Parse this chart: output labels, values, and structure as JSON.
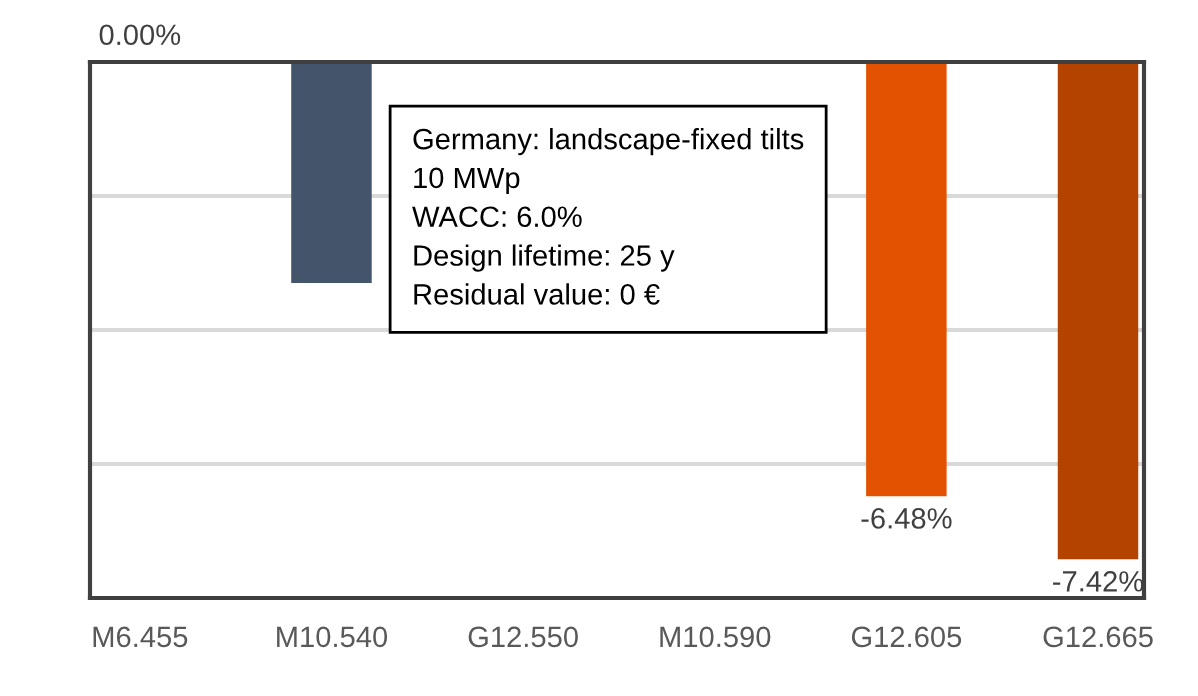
{
  "chart_data": {
    "type": "bar",
    "categories": [
      "M6.455",
      "M10.540",
      "G12.550",
      "M10.590",
      "G12.605",
      "G12.665"
    ],
    "values": [
      0.0,
      -3.3,
      null,
      null,
      -6.48,
      -7.42
    ],
    "colors": [
      "#44546a",
      "#44546a",
      "#ff5f00",
      "#262e3d",
      "#e35200",
      "#b54300"
    ],
    "value_labels": [
      "0.00%",
      null,
      null,
      null,
      "-6.48%",
      "-7.42%"
    ],
    "ylim": [
      -8,
      0
    ],
    "yticks": [
      {
        "value": -8,
        "label": null
      },
      {
        "value": -6,
        "label": null
      },
      {
        "value": -4,
        "label": null
      },
      {
        "value": -2,
        "label": null
      },
      {
        "value": 0,
        "label": null
      }
    ],
    "grid": "y",
    "tick_labels": "x",
    "annotations": [
      "Germany: landscape-fixed tilts\n10 MWp\nWACC: 6.0%\nDesign lifetime: 25 y\nResidual value: 0 €"
    ]
  }
}
